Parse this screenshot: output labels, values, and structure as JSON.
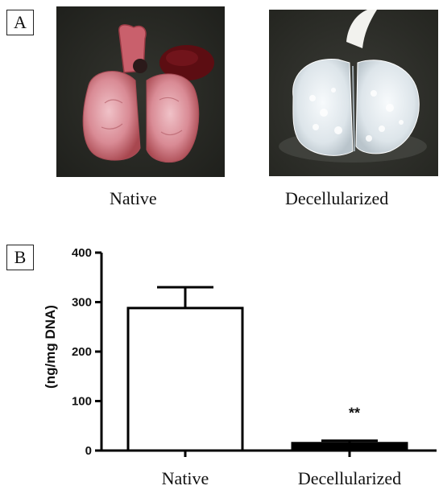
{
  "panels": {
    "a": {
      "label": "A"
    },
    "b": {
      "label": "B"
    }
  },
  "photos": [
    {
      "caption": "Native"
    },
    {
      "caption": "Decellularized"
    }
  ],
  "colors": {
    "background_photo": "#2a2b26",
    "native_tissue": "#d98b95",
    "decell_tissue": "#e8edf0",
    "bar_native": "#ffffff",
    "bar_decell": "#000000"
  },
  "chart_data": {
    "type": "bar",
    "categories": [
      "Native",
      "Decellularized"
    ],
    "values": [
      288,
      15
    ],
    "errors": [
      42,
      5
    ],
    "ylabel": "(ng/mg DNA)",
    "ylim": [
      0,
      400
    ],
    "yticks": [
      0,
      100,
      200,
      300,
      400
    ],
    "annotations": [
      {
        "category": "Decellularized",
        "text": "**"
      }
    ],
    "grid": false
  }
}
